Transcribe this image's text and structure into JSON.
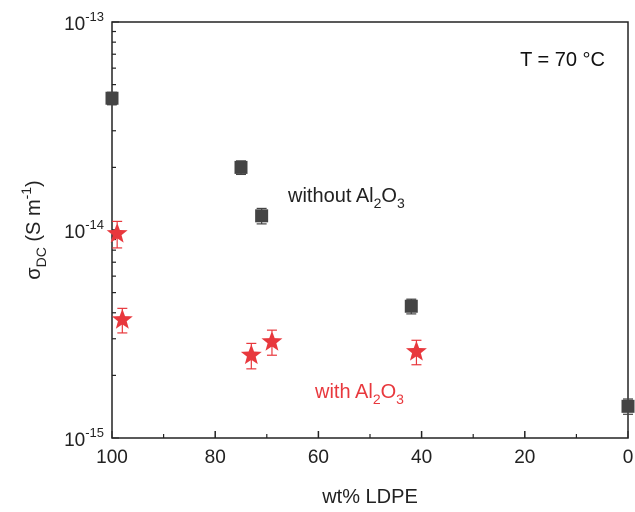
{
  "chart_data": {
    "type": "scatter",
    "xlabel": "wt% LDPE",
    "ylabel_parts": {
      "base": "σ",
      "sub": "DC",
      "rest": " (S m",
      "sup": "-1",
      "end": ")"
    },
    "x_reversed": true,
    "xlim": [
      0,
      100
    ],
    "x_ticks": [
      "100",
      "80",
      "60",
      "40",
      "20",
      "0"
    ],
    "y_scale": "log",
    "ylim": [
      1e-15,
      1e-13
    ],
    "y_ticks": [
      {
        "base": "10",
        "exp": "-13"
      },
      {
        "base": "10",
        "exp": "-14"
      },
      {
        "base": "10",
        "exp": "-15"
      }
    ],
    "annotation": "T = 70 °C",
    "series_labels": {
      "without": {
        "pre": "without Al",
        "sub1": "2",
        "mid": "O",
        "sub2": "3"
      },
      "with": {
        "pre": "with Al",
        "sub1": "2",
        "mid": "O",
        "sub2": "3"
      }
    },
    "series": [
      {
        "key": "without",
        "marker": "square",
        "color": "#444444",
        "points": [
          {
            "x": 100,
            "y": 4.3e-14,
            "err": 3e-15
          },
          {
            "x": 75,
            "y": 2e-14,
            "err": 1.5e-15
          },
          {
            "x": 71,
            "y": 1.17e-14,
            "err": 1e-15
          },
          {
            "x": 42,
            "y": 4.3e-15,
            "err": 3.5e-16
          },
          {
            "x": 0,
            "y": 1.42e-15,
            "err": 1.2e-16
          }
        ]
      },
      {
        "key": "with",
        "marker": "star",
        "color": "#e8383d",
        "points": [
          {
            "x": 99,
            "y": 9.6e-15,
            "err": 1.4e-15
          },
          {
            "x": 98,
            "y": 3.7e-15,
            "err": 5e-16
          },
          {
            "x": 73,
            "y": 2.5e-15,
            "err": 3.5e-16
          },
          {
            "x": 69,
            "y": 2.9e-15,
            "err": 4e-16
          },
          {
            "x": 41,
            "y": 2.6e-15,
            "err": 3.5e-16
          }
        ]
      }
    ]
  }
}
